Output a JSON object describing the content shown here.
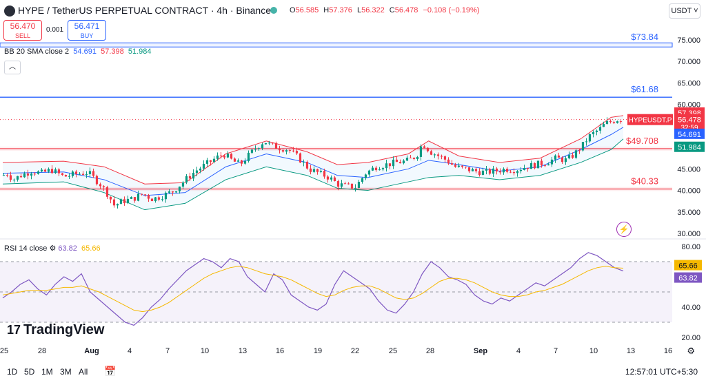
{
  "header": {
    "symbol": "HYPE / TetherUS PERPETUAL CONTRACT · 4h · Binance",
    "ohlc": [
      {
        "k": "O",
        "v": "56.585"
      },
      {
        "k": "H",
        "v": "57.376"
      },
      {
        "k": "L",
        "v": "56.322"
      },
      {
        "k": "C",
        "v": "56.478"
      }
    ],
    "change": "−0.108 (−0.19%)",
    "currency": "USDT ˅"
  },
  "trade": {
    "sell_price": "56.470",
    "sell_label": "SELL",
    "spread": "0.001",
    "buy_price": "56.471",
    "buy_label": "BUY"
  },
  "indicators": {
    "bb": {
      "label": "BB 20 SMA close 2",
      "mid": "54.691",
      "upper": "57.398",
      "lower": "51.984"
    },
    "rsi": {
      "label": "RSI 14 close",
      "rsi": "63.82",
      "ma": "65.66"
    }
  },
  "branding": {
    "name": "TradingView"
  },
  "footer": {
    "timeframes": [
      "1D",
      "5D",
      "1M",
      "3M",
      "All"
    ],
    "clock": "12:57:01 UTC+5:30"
  },
  "colors": {
    "up": "#089981",
    "down": "#f23645",
    "blue": "#2962ff",
    "rsi": "#7e57c2",
    "rsi_ma": "#f5b800"
  },
  "chart_data": [
    {
      "type": "candlestick",
      "ylim": [
        30,
        75
      ],
      "y_ticks": [
        "75.000",
        "70.000",
        "65.000",
        "60.000",
        "55.000",
        "50.000",
        "45.000",
        "40.000",
        "35.000",
        "30.000"
      ],
      "x_ticks": [
        "25",
        "28",
        "Aug",
        "4",
        "7",
        "10",
        "13",
        "16",
        "19",
        "22",
        "25",
        "28",
        "Sep",
        "4",
        "7",
        "10",
        "13",
        "16"
      ],
      "horizontal_lines": [
        {
          "value": 73.84,
          "label": "$73.84",
          "color": "#2962ff"
        },
        {
          "value": 61.68,
          "label": "$61.68",
          "color": "#2962ff"
        },
        {
          "value": 49.708,
          "label": "$49.708",
          "color": "#f23645"
        },
        {
          "value": 40.33,
          "label": "$40.33",
          "color": "#f23645"
        }
      ],
      "price_labels": [
        {
          "value": 57.398,
          "text": "57.398",
          "color": "#f23645"
        },
        {
          "value": 56.478,
          "text": "HYPEUSDT.P",
          "value_text": "56.478",
          "countdown": "32:59",
          "color": "#f23645"
        },
        {
          "value": 54.691,
          "text": "54.691",
          "color": "#2962ff"
        },
        {
          "value": 51.984,
          "text": "51.984",
          "color": "#089981"
        }
      ],
      "anchors": [
        [
          0,
          43.5
        ],
        [
          5,
          44.0
        ],
        [
          10,
          42.5
        ],
        [
          18,
          43.5
        ],
        [
          28,
          44.5
        ],
        [
          38,
          44.0
        ],
        [
          48,
          44.8
        ],
        [
          60,
          43.2
        ],
        [
          72,
          43.8
        ],
        [
          84,
          44.2
        ],
        [
          96,
          41.5
        ],
        [
          104,
          39.0
        ],
        [
          110,
          36.5
        ],
        [
          118,
          37.5
        ],
        [
          128,
          38.0
        ],
        [
          138,
          39.2
        ],
        [
          148,
          38.0
        ],
        [
          158,
          38.8
        ],
        [
          168,
          39.8
        ],
        [
          178,
          42.0
        ],
        [
          190,
          44.5
        ],
        [
          200,
          46.0
        ],
        [
          210,
          47.5
        ],
        [
          218,
          48.5
        ],
        [
          226,
          47.0
        ],
        [
          234,
          46.0
        ],
        [
          242,
          48.0
        ],
        [
          250,
          50.0
        ],
        [
          258,
          51.5
        ],
        [
          264,
          50.5
        ],
        [
          272,
          50.0
        ],
        [
          282,
          49.5
        ],
        [
          292,
          47.5
        ],
        [
          302,
          45.0
        ],
        [
          312,
          44.0
        ],
        [
          322,
          43.0
        ],
        [
          330,
          41.5
        ],
        [
          338,
          41.0
        ],
        [
          348,
          40.8
        ],
        [
          358,
          44.0
        ],
        [
          368,
          45.5
        ],
        [
          378,
          46.0
        ],
        [
          388,
          46.5
        ],
        [
          398,
          46.8
        ],
        [
          408,
          48.0
        ],
        [
          414,
          51.0
        ],
        [
          422,
          49.0
        ],
        [
          430,
          48.0
        ],
        [
          438,
          47.0
        ],
        [
          446,
          45.5
        ],
        [
          456,
          45.0
        ],
        [
          466,
          44.5
        ],
        [
          476,
          44.2
        ],
        [
          486,
          44.5
        ],
        [
          496,
          45.0
        ],
        [
          506,
          44.8
        ],
        [
          516,
          45.5
        ],
        [
          526,
          46.0
        ],
        [
          536,
          46.5
        ],
        [
          546,
          47.5
        ],
        [
          556,
          47.0
        ],
        [
          564,
          48.5
        ],
        [
          572,
          50.5
        ],
        [
          578,
          52.5
        ],
        [
          584,
          53.5
        ],
        [
          590,
          54.5
        ],
        [
          594,
          55.5
        ],
        [
          600,
          56.0
        ],
        [
          606,
          56.5
        ],
        [
          612,
          56.478
        ]
      ],
      "bollinger": {
        "upper": [
          [
            0,
            46.5
          ],
          [
            60,
            46.8
          ],
          [
            100,
            45.5
          ],
          [
            140,
            41.5
          ],
          [
            180,
            41.8
          ],
          [
            220,
            48.5
          ],
          [
            260,
            51.5
          ],
          [
            300,
            49.0
          ],
          [
            330,
            46.0
          ],
          [
            360,
            46.5
          ],
          [
            400,
            48.5
          ],
          [
            420,
            51.5
          ],
          [
            450,
            48.0
          ],
          [
            490,
            46.5
          ],
          [
            530,
            47.5
          ],
          [
            570,
            52.0
          ],
          [
            600,
            57.0
          ],
          [
            612,
            57.398
          ]
        ],
        "middle": [
          [
            0,
            44.0
          ],
          [
            60,
            44.3
          ],
          [
            100,
            42.5
          ],
          [
            140,
            38.8
          ],
          [
            180,
            39.5
          ],
          [
            220,
            45.5
          ],
          [
            260,
            48.5
          ],
          [
            300,
            46.5
          ],
          [
            330,
            43.5
          ],
          [
            360,
            43.0
          ],
          [
            400,
            45.0
          ],
          [
            420,
            47.0
          ],
          [
            450,
            46.0
          ],
          [
            490,
            44.5
          ],
          [
            530,
            45.5
          ],
          [
            570,
            49.5
          ],
          [
            600,
            53.0
          ],
          [
            612,
            54.691
          ]
        ],
        "lower": [
          [
            0,
            41.5
          ],
          [
            60,
            42.0
          ],
          [
            100,
            39.5
          ],
          [
            140,
            35.5
          ],
          [
            180,
            37.0
          ],
          [
            220,
            42.5
          ],
          [
            260,
            45.5
          ],
          [
            300,
            43.5
          ],
          [
            330,
            40.5
          ],
          [
            360,
            40.0
          ],
          [
            400,
            42.0
          ],
          [
            420,
            43.0
          ],
          [
            450,
            43.5
          ],
          [
            490,
            42.5
          ],
          [
            530,
            43.5
          ],
          [
            570,
            46.5
          ],
          [
            600,
            49.5
          ],
          [
            612,
            51.984
          ]
        ]
      }
    },
    {
      "type": "line",
      "title": "RSI 14 close",
      "ylim": [
        20,
        80
      ],
      "y_ticks": [
        "80.00",
        "60.00",
        "40.00",
        "20.00"
      ],
      "bands": [
        70,
        50,
        30
      ],
      "value_labels": [
        {
          "value": 65.66,
          "text": "65.66",
          "color": "#f5b800"
        },
        {
          "value": 63.82,
          "text": "63.82",
          "color": "#7e57c2"
        }
      ],
      "series": [
        {
          "color": "#7e57c2",
          "values": [
            46,
            50,
            55,
            58,
            52,
            48,
            55,
            60,
            57,
            62,
            50,
            45,
            40,
            35,
            30,
            28,
            33,
            40,
            45,
            52,
            58,
            64,
            68,
            72,
            70,
            66,
            72,
            70,
            60,
            55,
            50,
            62,
            58,
            48,
            44,
            40,
            38,
            42,
            55,
            64,
            60,
            56,
            52,
            44,
            38,
            36,
            42,
            50,
            62,
            70,
            66,
            60,
            58,
            55,
            48,
            44,
            42,
            46,
            44,
            48,
            52,
            56,
            54,
            58,
            62,
            66,
            72,
            76,
            74,
            70,
            66,
            63.82
          ]
        },
        {
          "color": "#f5b800",
          "values": [
            48,
            49,
            50,
            51,
            51,
            51,
            52,
            53,
            53,
            54,
            52,
            50,
            47,
            44,
            41,
            38,
            37,
            38,
            40,
            43,
            47,
            51,
            55,
            59,
            62,
            64,
            66,
            67,
            66,
            64,
            62,
            61,
            60,
            58,
            55,
            52,
            49,
            47,
            48,
            51,
            53,
            54,
            54,
            52,
            49,
            46,
            45,
            46,
            49,
            53,
            57,
            59,
            59,
            58,
            56,
            53,
            50,
            48,
            47,
            47,
            48,
            50,
            51,
            53,
            55,
            58,
            61,
            64,
            66,
            67,
            66,
            65.66
          ]
        }
      ]
    }
  ]
}
